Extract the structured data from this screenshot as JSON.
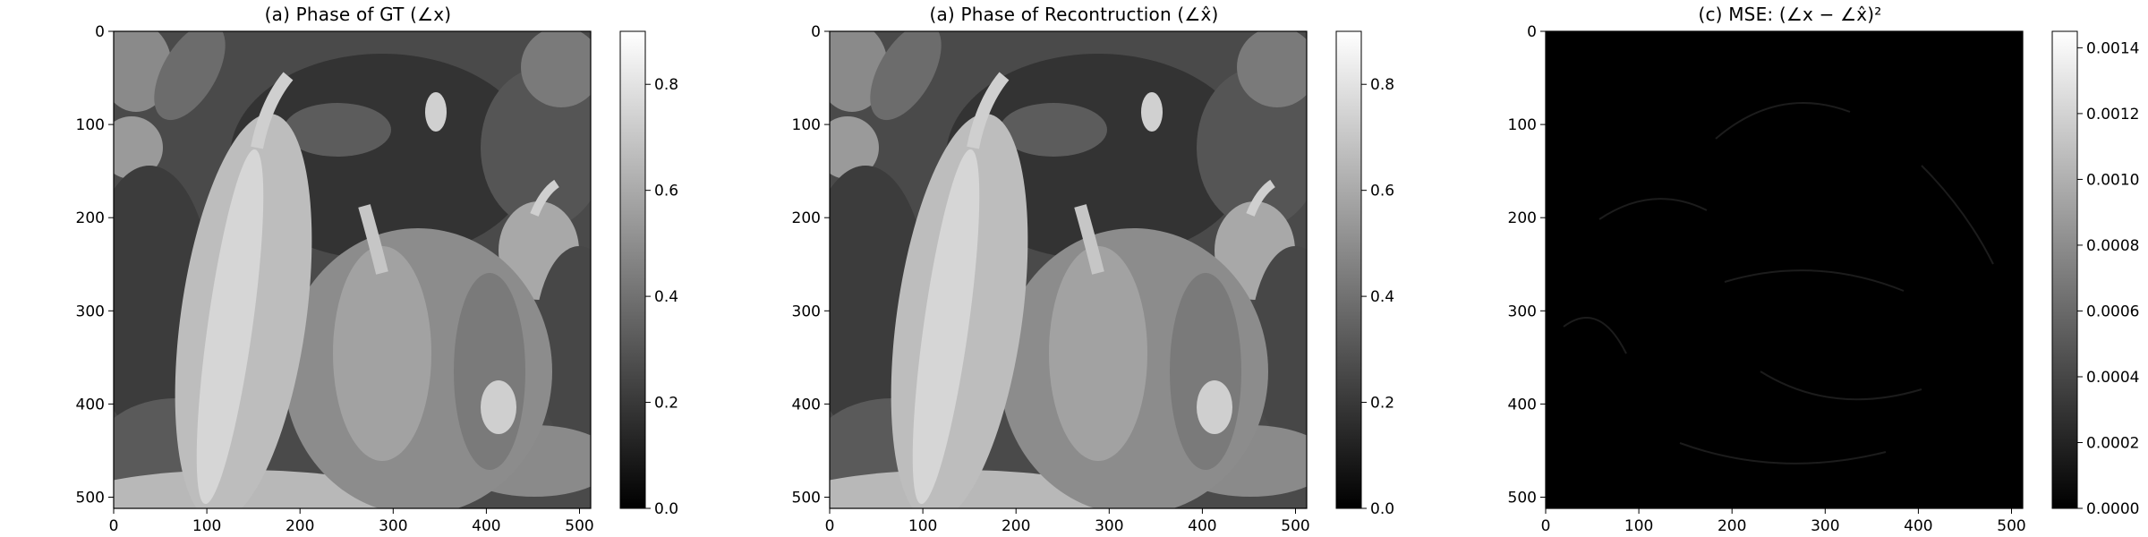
{
  "figure": {
    "panels": [
      {
        "title": "(a) Phase of GT (∠x)",
        "image_kind": "peppers",
        "colorbar": {
          "ticks": [
            "0.0",
            "0.2",
            "0.4",
            "0.6",
            "0.8"
          ],
          "tick_values": [
            0,
            0.2,
            0.4,
            0.6,
            0.8
          ],
          "vmin": 0,
          "vmax": 0.9
        }
      },
      {
        "title": "(a) Phase of Recontruction (∠x̂)",
        "image_kind": "peppers",
        "colorbar": {
          "ticks": [
            "0.0",
            "0.2",
            "0.4",
            "0.6",
            "0.8"
          ],
          "tick_values": [
            0,
            0.2,
            0.4,
            0.6,
            0.8
          ],
          "vmin": 0,
          "vmax": 0.9
        }
      },
      {
        "title": "(c) MSE: (∠x − ∠x̂)²",
        "image_kind": "error",
        "colorbar": {
          "ticks": [
            "0.0000",
            "0.0002",
            "0.0004",
            "0.0006",
            "0.0008",
            "0.0010",
            "0.0012",
            "0.0014"
          ],
          "tick_values": [
            0,
            0.0002,
            0.0004,
            0.0006,
            0.0008,
            0.001,
            0.0012,
            0.0014
          ],
          "vmin": 0,
          "vmax": 0.00145
        }
      }
    ],
    "axis_ticks": {
      "x": [
        "0",
        "100",
        "200",
        "300",
        "400",
        "500"
      ],
      "y": [
        "0",
        "100",
        "200",
        "300",
        "400",
        "500"
      ],
      "values": [
        0,
        100,
        200,
        300,
        400,
        500
      ],
      "extent": [
        0,
        512
      ]
    }
  },
  "chart_data": [
    {
      "type": "heatmap",
      "title": "(a) Phase of GT (∠x)",
      "xlim": [
        0,
        512
      ],
      "ylim": [
        512,
        0
      ],
      "colormap": "gray",
      "colorbar_range": [
        0.0,
        0.9
      ]
    },
    {
      "type": "heatmap",
      "title": "(a) Phase of Recontruction (∠x̂)",
      "xlim": [
        0,
        512
      ],
      "ylim": [
        512,
        0
      ],
      "colormap": "gray",
      "colorbar_range": [
        0.0,
        0.9
      ]
    },
    {
      "type": "heatmap",
      "title": "(c) MSE: (∠x − ∠x̂)²",
      "xlim": [
        0,
        512
      ],
      "ylim": [
        512,
        0
      ],
      "colormap": "gray",
      "colorbar_range": [
        0.0,
        0.00145
      ]
    }
  ]
}
